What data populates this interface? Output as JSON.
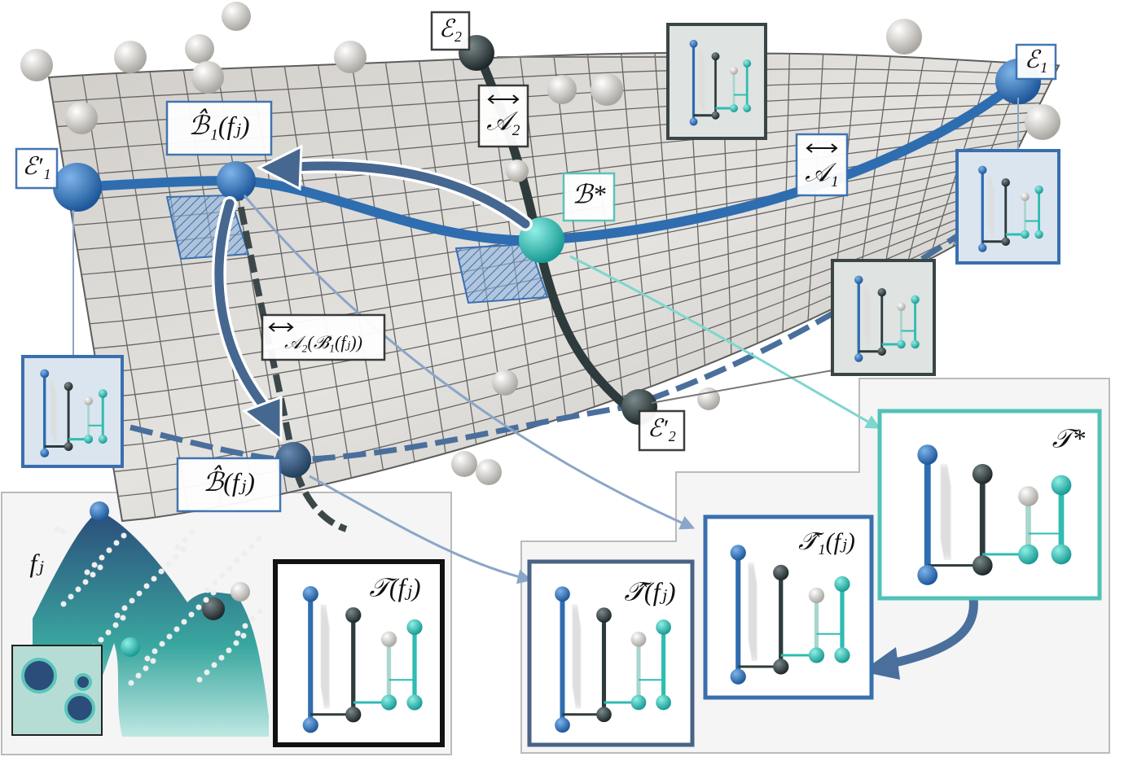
{
  "labels": {
    "e2": "ℰ₂",
    "e1": "ℰ₁",
    "e1_prime": "ℰ′₁",
    "b1_hat": "ℬ̂₁(fⱼ)",
    "a2": "𝒜₂",
    "b_star": "ℬ*",
    "a1": "𝒜₁",
    "a2_of_b1": "𝒜₂(ℬ̂₁(fⱼ))",
    "e2_prime": "ℰ′₂",
    "b_hat": "ℬ̂(fⱼ)",
    "f_j": "fⱼ",
    "t_fj": "𝒯(fⱼ)",
    "t_hat": "𝒯̂(fⱼ)",
    "t1_hat": "𝒯̂₁(fⱼ)",
    "t_star": "𝒯*"
  }
}
